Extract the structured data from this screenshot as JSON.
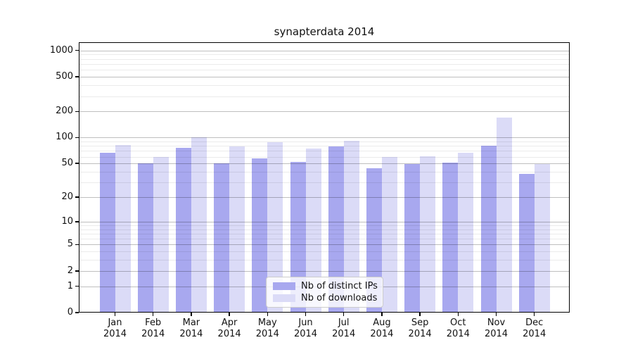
{
  "figure": {
    "background": "#ffffff"
  },
  "chart_data": {
    "type": "bar",
    "title": "synapterdata 2014",
    "categories": [
      "Jan 2014",
      "Feb 2014",
      "Mar 2014",
      "Apr 2014",
      "May 2014",
      "Jun 2014",
      "Jul 2014",
      "Aug 2014",
      "Sep 2014",
      "Oct 2014",
      "Nov 2014",
      "Dec 2014"
    ],
    "series": [
      {
        "name": "Nb of distinct IPs",
        "color": "#a8a8ef",
        "values": [
          66,
          50,
          76,
          50,
          57,
          52,
          79,
          44,
          49,
          51,
          80,
          38
        ]
      },
      {
        "name": "Nb of downloads",
        "color": "#dbdbf7",
        "values": [
          82,
          59,
          100,
          79,
          89,
          75,
          92,
          60,
          61,
          67,
          170,
          49
        ]
      }
    ],
    "yscale": "log1p",
    "yticks": [
      0,
      1,
      2,
      5,
      10,
      20,
      50,
      100,
      200,
      500,
      1000
    ],
    "minor_yticks": [
      3,
      4,
      6,
      7,
      8,
      9,
      30,
      40,
      60,
      70,
      80,
      90,
      300,
      400,
      600,
      700,
      800,
      900
    ],
    "ylim": [
      0,
      1245
    ],
    "xlabel": "",
    "ylabel": "",
    "grid": true,
    "grid_above_bars": true,
    "legend_position": "lower center",
    "axis_color": "#000000",
    "major_grid_color": "#bfbfbf",
    "minor_grid_color": "#ebebeb"
  }
}
